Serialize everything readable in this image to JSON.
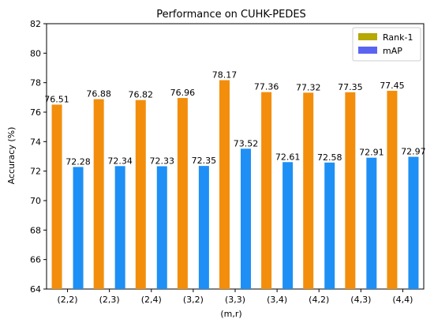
{
  "chart_data": {
    "type": "bar",
    "title": "Performance on CUHK-PEDES",
    "xlabel": "(m,r)",
    "ylabel": "Accuracy (%)",
    "categories": [
      "(2,2)",
      "(2,3)",
      "(2,4)",
      "(3,2)",
      "(3,3)",
      "(3,4)",
      "(4,2)",
      "(4,3)",
      "(4,4)"
    ],
    "ylim": [
      64,
      82
    ],
    "yticks": [
      64,
      66,
      68,
      70,
      72,
      74,
      76,
      78,
      80,
      82
    ],
    "legend_position": "top-right",
    "grid": false,
    "series": [
      {
        "name": "Rank-1",
        "color": "#f28e0c",
        "legend_color": "#b5a800",
        "values": [
          76.51,
          76.88,
          76.82,
          76.96,
          78.17,
          77.36,
          77.32,
          77.35,
          77.45
        ]
      },
      {
        "name": "mAP",
        "color": "#1e8ff5",
        "legend_color": "#5a64f0",
        "values": [
          72.28,
          72.34,
          72.33,
          72.35,
          73.52,
          72.61,
          72.58,
          72.91,
          72.97
        ]
      }
    ]
  }
}
